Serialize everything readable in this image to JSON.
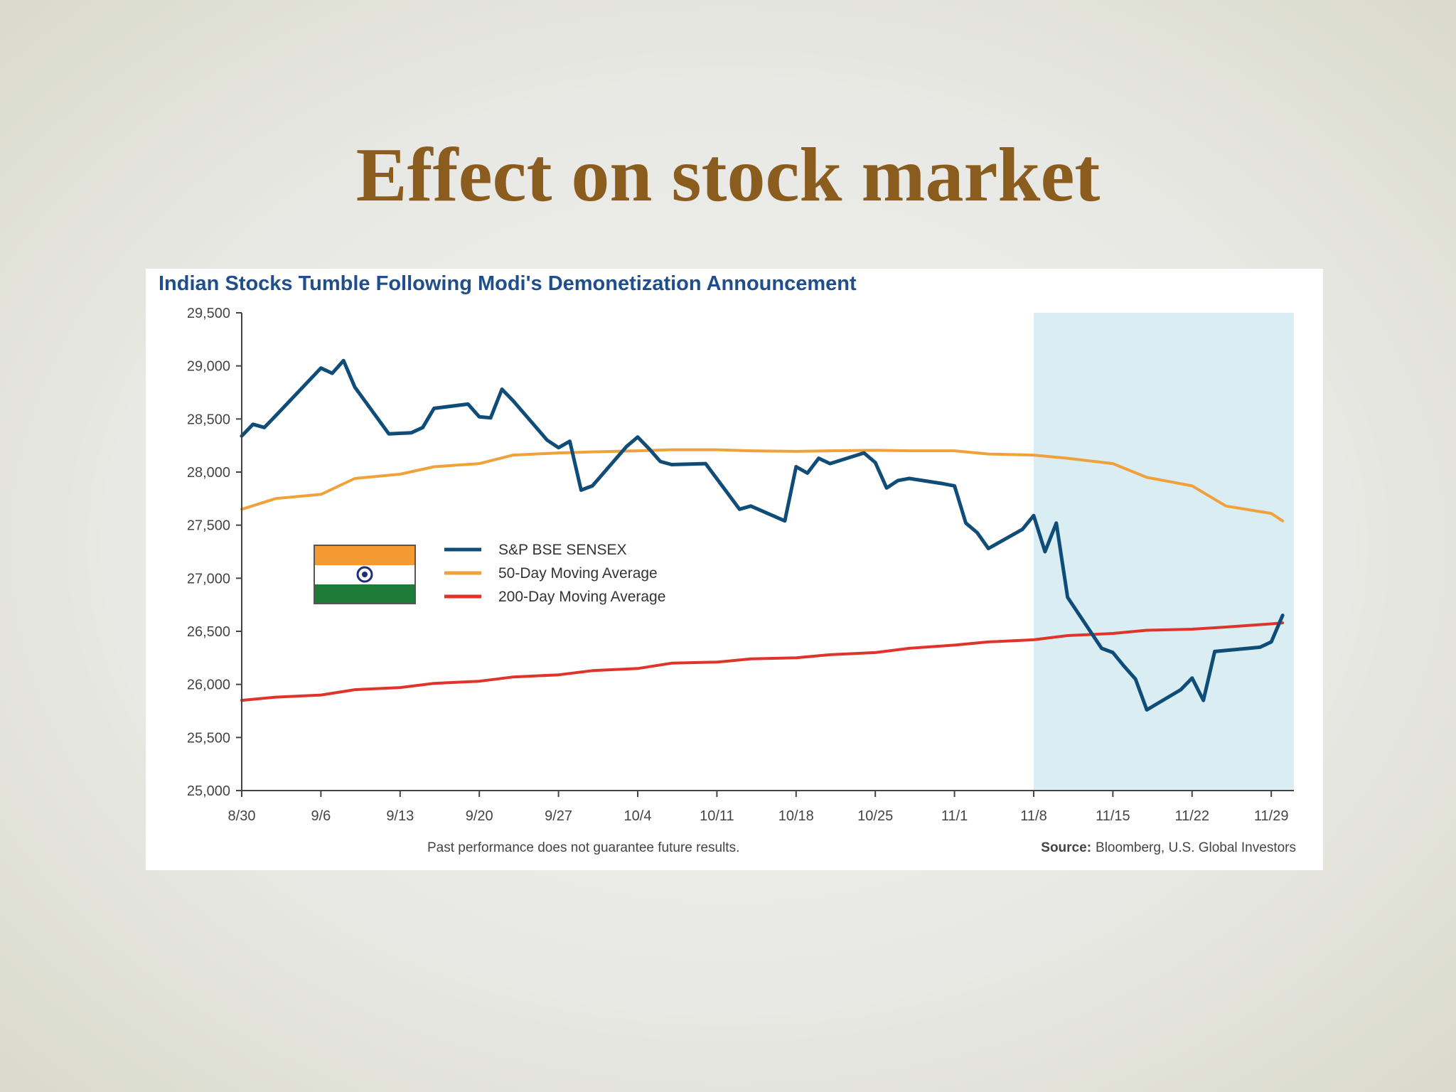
{
  "slide": {
    "title": "Effect on stock market"
  },
  "colors": {
    "title": "#8a5c1e",
    "chart_title": "#1f4e8c",
    "sensex": "#0f4c78",
    "ma50": "#f0a13a",
    "ma200": "#e0342b",
    "highlight": "#d9edf3"
  },
  "chart_data": {
    "type": "line",
    "title": "Indian Stocks Tumble Following Modi's Demonetization Announcement",
    "xlabel": "",
    "ylabel": "",
    "ylim": [
      25000,
      29500
    ],
    "y_ticks": [
      25000,
      25500,
      26000,
      26500,
      27000,
      27500,
      28000,
      28500,
      29000,
      29500
    ],
    "y_tick_labels": [
      "25,000",
      "25,500",
      "26,000",
      "26,500",
      "27,000",
      "27,500",
      "28,000",
      "28,500",
      "29,000",
      "29,500"
    ],
    "x_ticks": [
      "8/30",
      "9/6",
      "9/13",
      "9/20",
      "9/27",
      "10/4",
      "10/11",
      "10/18",
      "10/25",
      "11/1",
      "11/8",
      "11/15",
      "11/22",
      "11/29"
    ],
    "highlight_range": [
      "11/8",
      "12/1"
    ],
    "legend_placement": "middle-left",
    "legend_icon": "india-flag-icon",
    "series": [
      {
        "name": "S&P BSE SENSEX",
        "color": "#0f4c78",
        "x": [
          "8/30",
          "8/31",
          "9/1",
          "9/2",
          "9/6",
          "9/7",
          "9/8",
          "9/9",
          "9/12",
          "9/14",
          "9/15",
          "9/16",
          "9/19",
          "9/20",
          "9/21",
          "9/22",
          "9/23",
          "9/26",
          "9/27",
          "9/28",
          "9/29",
          "9/30",
          "10/3",
          "10/4",
          "10/5",
          "10/6",
          "10/7",
          "10/10",
          "10/13",
          "10/14",
          "10/17",
          "10/18",
          "10/19",
          "10/20",
          "10/21",
          "10/24",
          "10/25",
          "10/26",
          "10/27",
          "10/28",
          "10/31",
          "11/1",
          "11/2",
          "11/3",
          "11/4",
          "11/7",
          "11/8",
          "11/9",
          "11/10",
          "11/11",
          "11/14",
          "11/15",
          "11/16",
          "11/17",
          "11/18",
          "11/21",
          "11/22",
          "11/23",
          "11/24",
          "11/25",
          "11/28",
          "11/29",
          "11/30"
        ],
        "y": [
          28340,
          28450,
          28420,
          28530,
          28980,
          28930,
          29050,
          28800,
          28360,
          28370,
          28420,
          28600,
          28640,
          28520,
          28510,
          28780,
          28670,
          28300,
          28230,
          28290,
          27830,
          27870,
          28240,
          28330,
          28220,
          28100,
          28070,
          28080,
          27650,
          27680,
          27540,
          28050,
          27990,
          28130,
          28080,
          28180,
          28090,
          27850,
          27920,
          27940,
          27890,
          27870,
          27520,
          27430,
          27280,
          27460,
          27590,
          27250,
          27520,
          26820,
          26340,
          26300,
          26170,
          26050,
          25760,
          25950,
          26060,
          25850,
          26310,
          26320,
          26350,
          26400,
          26650
        ]
      },
      {
        "name": "50-Day Moving Average",
        "color": "#f0a13a",
        "x": [
          "8/30",
          "9/2",
          "9/6",
          "9/9",
          "9/13",
          "9/16",
          "9/20",
          "9/23",
          "9/27",
          "9/30",
          "10/4",
          "10/7",
          "10/11",
          "10/14",
          "10/18",
          "10/21",
          "10/25",
          "10/28",
          "11/1",
          "11/4",
          "11/8",
          "11/11",
          "11/15",
          "11/18",
          "11/22",
          "11/25",
          "11/29",
          "11/30"
        ],
        "y": [
          27650,
          27750,
          27790,
          27940,
          27980,
          28050,
          28080,
          28160,
          28180,
          28190,
          28200,
          28210,
          28210,
          28200,
          28195,
          28200,
          28205,
          28200,
          28200,
          28170,
          28160,
          28130,
          28080,
          27950,
          27870,
          27680,
          27610,
          27540
        ]
      },
      {
        "name": "200-Day Moving Average",
        "color": "#e0342b",
        "x": [
          "8/30",
          "9/2",
          "9/6",
          "9/9",
          "9/13",
          "9/16",
          "9/20",
          "9/23",
          "9/27",
          "9/30",
          "10/4",
          "10/7",
          "10/11",
          "10/14",
          "10/18",
          "10/21",
          "10/25",
          "10/28",
          "11/1",
          "11/4",
          "11/8",
          "11/11",
          "11/15",
          "11/18",
          "11/22",
          "11/25",
          "11/29",
          "11/30"
        ],
        "y": [
          25850,
          25880,
          25900,
          25950,
          25970,
          26010,
          26030,
          26070,
          26090,
          26130,
          26150,
          26200,
          26210,
          26240,
          26250,
          26280,
          26300,
          26340,
          26370,
          26400,
          26420,
          26460,
          26480,
          26510,
          26520,
          26540,
          26570,
          26580
        ]
      }
    ],
    "footnote": "Past performance does not guarantee future results.",
    "source_label": "Source:",
    "source_text": "Bloomberg, U.S. Global Investors"
  }
}
